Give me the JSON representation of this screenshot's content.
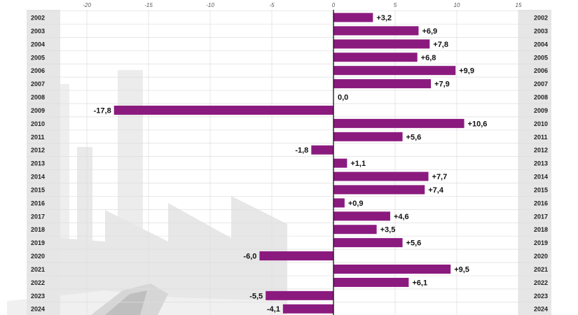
{
  "chart_data": {
    "type": "bar",
    "orientation": "horizontal",
    "categories": [
      "2002",
      "2003",
      "2004",
      "2005",
      "2006",
      "2007",
      "2008",
      "2009",
      "2010",
      "2011",
      "2012",
      "2013",
      "2014",
      "2015",
      "2016",
      "2017",
      "2018",
      "2019",
      "2020",
      "2021",
      "2022",
      "2023",
      "2024"
    ],
    "values": [
      3.2,
      6.9,
      7.8,
      6.8,
      9.9,
      7.9,
      0.0,
      -17.8,
      10.6,
      5.6,
      -1.8,
      1.1,
      7.7,
      7.4,
      0.9,
      4.6,
      3.5,
      5.6,
      -6.0,
      9.5,
      6.1,
      -5.5,
      -4.1
    ],
    "value_labels": [
      "+3,2",
      "+6,9",
      "+7,8",
      "+6,8",
      "+9,9",
      "+7,9",
      "0,0",
      "-17,8",
      "+10,6",
      "+5,6",
      "-1,8",
      "+1,1",
      "+7,7",
      "+7,4",
      "+0,9",
      "+4,6",
      "+3,5",
      "+5,6",
      "-6,0",
      "+9,5",
      "+6,1",
      "-5,5",
      "-4,1"
    ],
    "x_ticks": [
      "-20",
      "-15",
      "-10",
      "-5",
      "0",
      "5",
      "10",
      "15"
    ],
    "xlim": [
      -22,
      15
    ],
    "grid": true,
    "bar_color": "#8b1a7f",
    "title": "",
    "xlabel": "",
    "ylabel": ""
  },
  "colors": {
    "bar": "#8b1a7f",
    "year_band": "#e6e6e6",
    "grid": "#dddddd",
    "zero_line": "#111111",
    "background_art": "#e9e9e9"
  }
}
